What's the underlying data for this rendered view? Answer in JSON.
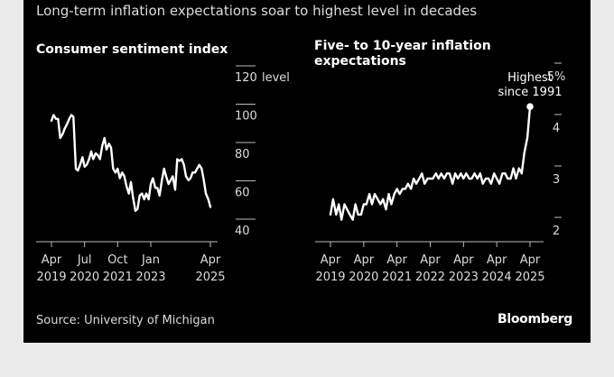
{
  "header": {
    "subtitle": "Long-term inflation expectations soar to highest level in decades"
  },
  "footer": {
    "source": "Source: University of Michigan",
    "brand": "Bloomberg"
  },
  "colors": {
    "background": "#000000",
    "line": "#ffffff",
    "text": "#dcdcdc"
  },
  "chart_data": [
    {
      "type": "line",
      "title": "Consumer sentiment index",
      "unit_label": "level",
      "ylim": [
        40,
        120
      ],
      "yticks": [
        40,
        60,
        80,
        100,
        120
      ],
      "ytick_labels": [
        "40",
        "60",
        "80",
        "100",
        "120"
      ],
      "xlim": [
        2019.25,
        2025.25
      ],
      "xticks": [
        {
          "x": 2019.25,
          "line1": "Apr",
          "line2": "2019"
        },
        {
          "x": 2020.5,
          "line1": "Jul",
          "line2": "2020"
        },
        {
          "x": 2021.75,
          "line1": "Oct",
          "line2": "2021"
        },
        {
          "x": 2023.0,
          "line1": "Jan",
          "line2": "2023"
        },
        {
          "x": 2025.25,
          "line1": "Apr",
          "line2": "2025"
        }
      ],
      "series": [
        {
          "name": "Consumer sentiment index",
          "x": [
            2019.25,
            2019.33,
            2019.42,
            2019.5,
            2019.58,
            2019.67,
            2019.75,
            2019.83,
            2019.92,
            2020.0,
            2020.08,
            2020.17,
            2020.25,
            2020.33,
            2020.42,
            2020.5,
            2020.58,
            2020.67,
            2020.75,
            2020.83,
            2020.92,
            2021.0,
            2021.08,
            2021.17,
            2021.25,
            2021.33,
            2021.42,
            2021.5,
            2021.58,
            2021.67,
            2021.75,
            2021.83,
            2021.92,
            2022.0,
            2022.08,
            2022.17,
            2022.25,
            2022.33,
            2022.42,
            2022.5,
            2022.58,
            2022.67,
            2022.75,
            2022.83,
            2022.92,
            2023.0,
            2023.08,
            2023.17,
            2023.25,
            2023.33,
            2023.42,
            2023.5,
            2023.58,
            2023.67,
            2023.75,
            2023.83,
            2023.92,
            2024.0,
            2024.08,
            2024.17,
            2024.25,
            2024.33,
            2024.42,
            2024.5,
            2024.58,
            2024.67,
            2024.75,
            2024.83,
            2024.92,
            2025.0,
            2025.08,
            2025.17,
            2025.25
          ],
          "values": [
            97,
            100,
            98,
            98,
            88,
            90,
            93,
            95,
            98,
            100,
            99,
            72,
            71,
            74,
            78,
            73,
            74,
            77,
            81,
            77,
            80,
            79,
            77,
            84,
            88,
            82,
            85,
            83,
            72,
            70,
            72,
            67,
            70,
            68,
            63,
            59,
            65,
            57,
            50,
            51,
            58,
            59,
            56,
            59,
            56,
            64,
            67,
            62,
            62,
            58,
            66,
            72,
            68,
            64,
            66,
            68,
            61,
            77,
            76,
            77,
            74,
            68,
            66,
            67,
            70,
            70,
            72,
            74,
            72,
            66,
            59,
            56,
            52
          ]
        }
      ]
    },
    {
      "type": "line",
      "title": "Five- to 10-year inflation expectations",
      "unit_label": "%",
      "ylim": [
        2,
        5
      ],
      "yticks": [
        2,
        3,
        4,
        5
      ],
      "ytick_labels": [
        "2",
        "3",
        "4",
        "5%"
      ],
      "xlim": [
        2019.25,
        2025.25
      ],
      "xticks": [
        {
          "x": 2019.25,
          "line1": "Apr",
          "line2": "2019"
        },
        {
          "x": 2020.25,
          "line1": "Apr",
          "line2": "2020"
        },
        {
          "x": 2021.25,
          "line1": "Apr",
          "line2": "2021"
        },
        {
          "x": 2022.25,
          "line1": "Apr",
          "line2": "2022"
        },
        {
          "x": 2023.25,
          "line1": "Apr",
          "line2": "2023"
        },
        {
          "x": 2024.25,
          "line1": "Apr",
          "line2": "2024"
        },
        {
          "x": 2025.25,
          "line1": "Apr",
          "line2": "2025"
        }
      ],
      "annotation": {
        "line1": "Highest",
        "line2": "since 1991",
        "x": 2025.25,
        "y": 4.4
      },
      "series": [
        {
          "name": "Five- to 10-year inflation expectations",
          "x": [
            2019.25,
            2019.33,
            2019.42,
            2019.5,
            2019.58,
            2019.67,
            2019.75,
            2019.83,
            2019.92,
            2020.0,
            2020.08,
            2020.17,
            2020.25,
            2020.33,
            2020.42,
            2020.5,
            2020.58,
            2020.67,
            2020.75,
            2020.83,
            2020.92,
            2021.0,
            2021.08,
            2021.17,
            2021.25,
            2021.33,
            2021.42,
            2021.5,
            2021.58,
            2021.67,
            2021.75,
            2021.83,
            2021.92,
            2022.0,
            2022.08,
            2022.17,
            2022.25,
            2022.33,
            2022.42,
            2022.5,
            2022.58,
            2022.67,
            2022.75,
            2022.83,
            2022.92,
            2023.0,
            2023.08,
            2023.17,
            2023.25,
            2023.33,
            2023.42,
            2023.5,
            2023.58,
            2023.67,
            2023.75,
            2023.83,
            2023.92,
            2024.0,
            2024.08,
            2024.17,
            2024.25,
            2024.33,
            2024.42,
            2024.5,
            2024.58,
            2024.67,
            2024.75,
            2024.83,
            2024.92,
            2025.0,
            2025.08,
            2025.17,
            2025.25
          ],
          "values": [
            2.3,
            2.6,
            2.3,
            2.5,
            2.2,
            2.5,
            2.4,
            2.3,
            2.2,
            2.5,
            2.3,
            2.3,
            2.5,
            2.5,
            2.7,
            2.5,
            2.7,
            2.6,
            2.5,
            2.6,
            2.4,
            2.7,
            2.5,
            2.7,
            2.8,
            2.7,
            2.8,
            2.8,
            2.9,
            2.8,
            3.0,
            2.9,
            3.0,
            3.1,
            2.9,
            3.0,
            3.0,
            3.0,
            3.1,
            3.0,
            3.1,
            3.0,
            3.1,
            3.1,
            2.9,
            3.1,
            3.0,
            3.1,
            3.0,
            3.1,
            3.0,
            3.0,
            3.1,
            3.0,
            3.1,
            2.9,
            3.0,
            3.0,
            2.9,
            3.1,
            3.0,
            2.9,
            3.1,
            3.1,
            3.0,
            3.0,
            3.2,
            3.0,
            3.2,
            3.1,
            3.5,
            3.8,
            4.4
          ]
        }
      ]
    }
  ]
}
